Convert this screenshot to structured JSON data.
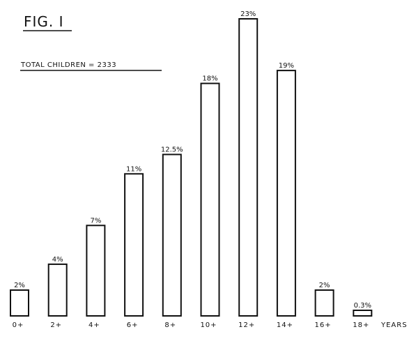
{
  "chart_data": {
    "type": "bar",
    "title": "FIG. I",
    "subtitle": "TOTAL CHILDREN = 2333",
    "xlabel": "YEARS",
    "ylabel": "",
    "categories": [
      "0+",
      "2+",
      "4+",
      "6+",
      "8+",
      "10+",
      "12+",
      "14+",
      "16+",
      "18+"
    ],
    "values": [
      2,
      4,
      7,
      11,
      12.5,
      18,
      23,
      19,
      2,
      0.3
    ],
    "value_labels": [
      "2%",
      "4%",
      "7%",
      "11%",
      "12.5%",
      "18%",
      "23%",
      "19%",
      "2%",
      "0.3%"
    ],
    "ylim": [
      0,
      23
    ],
    "grid": false,
    "legend": "none"
  }
}
